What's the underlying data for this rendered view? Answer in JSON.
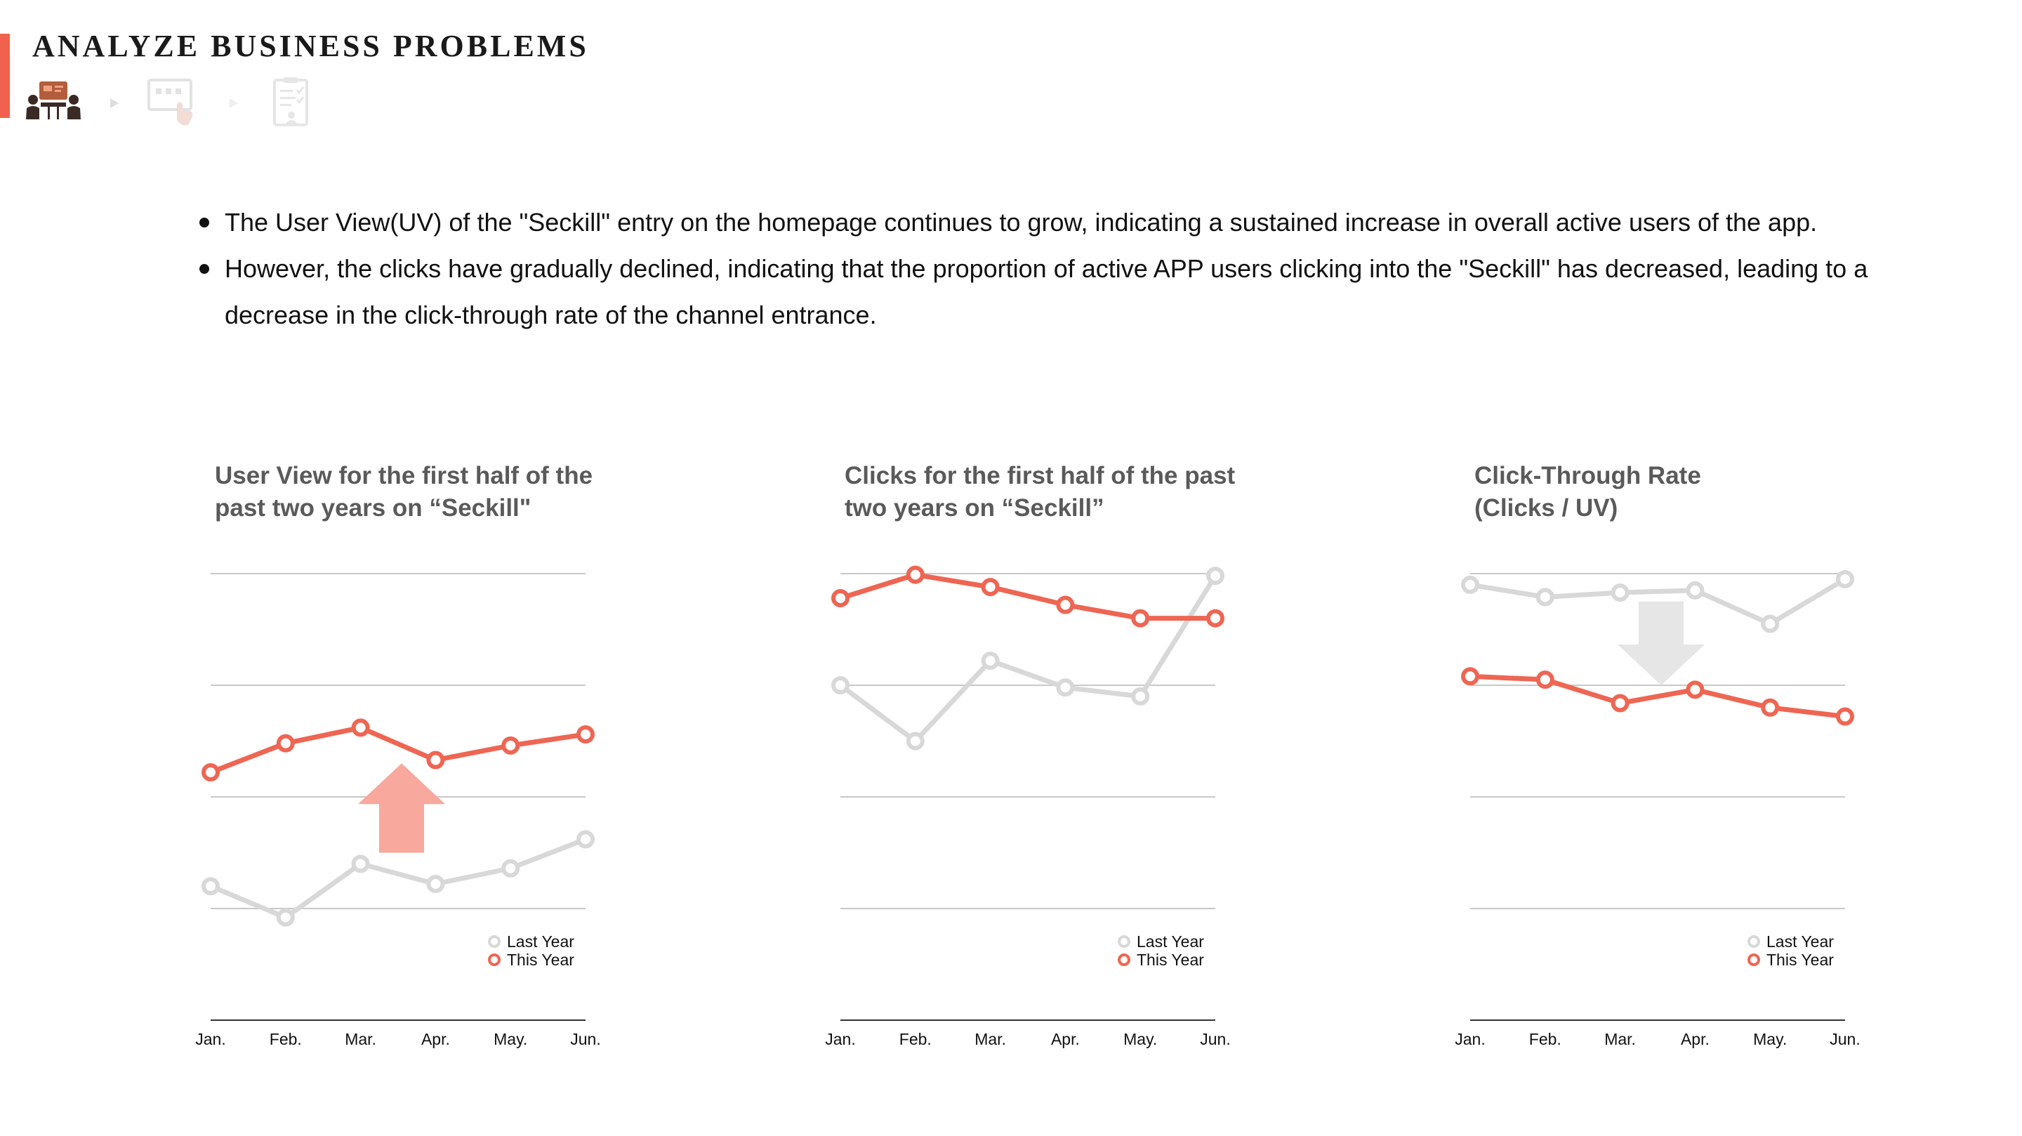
{
  "header": {
    "title": "ANALYZE BUSINESS PROBLEMS",
    "steps": [
      {
        "icon": "meeting-icon",
        "active": true
      },
      {
        "icon": "screen-click-icon",
        "active": false
      },
      {
        "icon": "clipboard-checklist-icon",
        "active": false
      }
    ]
  },
  "bullets": [
    "The User View(UV) of the \"Seckill\" entry on the homepage continues to grow, indicating a sustained increase in overall active users of the app.",
    "However, the clicks have gradually declined, indicating that the proportion of active APP users clicking into the \"Seckill\" has decreased, leading to a decrease in the click-through rate of the channel entrance."
  ],
  "colors": {
    "accent": "#f0624d",
    "this_year": "#ee6653",
    "last_year": "#d8d8d8",
    "up_arrow": "#f8a89c",
    "down_arrow": "#e6e6e6",
    "grid": "#c8c8c8",
    "axis": "#333333"
  },
  "chart_data": [
    {
      "type": "line",
      "title": "User View for the first half of the\npast two years on “Seckill\"",
      "categories": [
        "Jan.",
        "Feb.",
        "Mar.",
        "Apr.",
        "May.",
        "Jun."
      ],
      "series": [
        {
          "name": "Last Year",
          "values": [
            1.2,
            0.92,
            1.4,
            1.22,
            1.36,
            1.62
          ]
        },
        {
          "name": "This Year",
          "values": [
            2.22,
            2.48,
            2.62,
            2.33,
            2.46,
            2.56
          ]
        }
      ],
      "ylim": [
        0,
        4
      ],
      "gridlines": 4,
      "trend_arrow": "up",
      "legend_position": "bottom-right"
    },
    {
      "type": "line",
      "title": "Clicks for the first half of the past\ntwo years on “Seckill”",
      "categories": [
        "Jan.",
        "Feb.",
        "Mar.",
        "Apr.",
        "May.",
        "Jun."
      ],
      "series": [
        {
          "name": "Last Year",
          "values": [
            3.0,
            2.5,
            3.22,
            2.98,
            2.9,
            3.98
          ]
        },
        {
          "name": "This Year",
          "values": [
            3.78,
            3.99,
            3.88,
            3.72,
            3.6,
            3.6
          ]
        }
      ],
      "ylim": [
        0,
        4
      ],
      "gridlines": 4,
      "trend_arrow": "none",
      "legend_position": "bottom-right"
    },
    {
      "type": "line",
      "title": "Click-Through Rate\n(Clicks / UV)",
      "categories": [
        "Jan.",
        "Feb.",
        "Mar.",
        "Apr.",
        "May.",
        "Jun."
      ],
      "series": [
        {
          "name": "Last Year",
          "values": [
            3.9,
            3.79,
            3.83,
            3.85,
            3.55,
            3.95
          ]
        },
        {
          "name": "This Year",
          "values": [
            3.08,
            3.05,
            2.84,
            2.96,
            2.8,
            2.72
          ]
        }
      ],
      "ylim": [
        0,
        4
      ],
      "gridlines": 4,
      "trend_arrow": "down",
      "legend_position": "bottom-right"
    }
  ]
}
